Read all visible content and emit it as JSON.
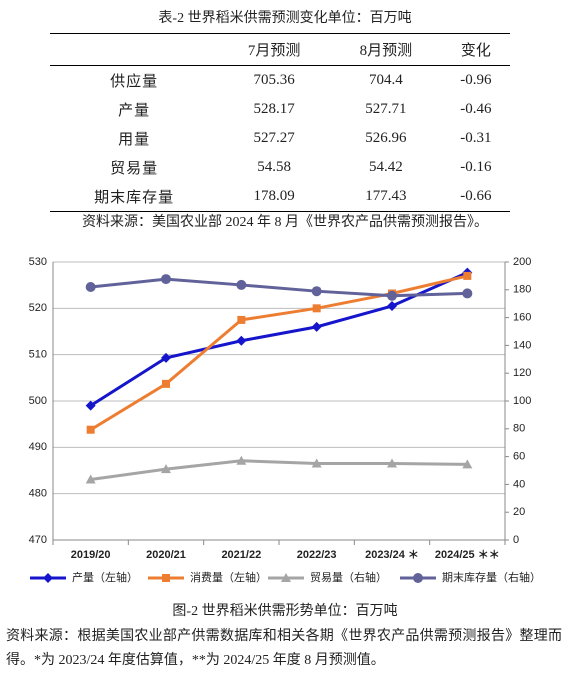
{
  "table": {
    "caption": "表-2 世界稻米供需预测变化单位：百万吨",
    "header": [
      "7月预测",
      "8月预测",
      "变化"
    ],
    "rows": [
      [
        "供应量",
        705.36,
        704.4,
        -0.96
      ],
      [
        "产量",
        528.17,
        527.71,
        -0.46
      ],
      [
        "用量",
        527.27,
        526.96,
        -0.31
      ],
      [
        "贸易量",
        54.58,
        54.42,
        -0.16
      ],
      [
        "期末库存量",
        178.09,
        177.43,
        -0.66
      ]
    ]
  },
  "table_source": "资料来源：美国农业部 2024 年 8 月《世界农产品供需预测报告》。",
  "chart_data": {
    "type": "line",
    "categories": [
      "2019/20",
      "2020/21",
      "2021/22",
      "2022/23",
      "2023/24 ＊",
      "2024/25 ＊＊"
    ],
    "ylim": [
      470,
      530
    ],
    "yticks": [
      470,
      480,
      490,
      500,
      510,
      520,
      530
    ],
    "y2lim": [
      0,
      200
    ],
    "y2ticks": [
      0,
      20,
      40,
      60,
      80,
      100,
      120,
      140,
      160,
      180,
      200
    ],
    "grid": true,
    "legend": "bottom",
    "series": [
      {
        "name": "产量（左轴）",
        "color": "#1515cc",
        "marker": "diamond",
        "values": [
          499,
          509.3,
          513,
          516,
          520.5,
          527.7
        ]
      },
      {
        "name": "消费量（左轴）",
        "color": "#ed7d31",
        "marker": "square",
        "values": [
          493.8,
          503.7,
          517.5,
          520,
          523.2,
          527
        ]
      },
      {
        "name": "贸易量（右轴）",
        "color": "#a5a5a5",
        "marker": "triangle",
        "axis": "y2",
        "values": [
          43.5,
          51,
          57,
          55,
          55,
          54.4
        ]
      },
      {
        "name": "期末库存量（右轴）",
        "color": "#62629a",
        "marker": "circle",
        "axis": "y2",
        "values": [
          182,
          187.7,
          183.5,
          179,
          175.7,
          177.4
        ]
      }
    ]
  },
  "figure_caption": "图-2 世界稻米供需形势单位：百万吨",
  "figure_note": "资料来源：根据美国农业部产供需数据库和相关各期《世界农产品供需预测报告》整理而得。*为 2023/24 年度估算值，**为 2024/25 年度 8 月预测值。"
}
